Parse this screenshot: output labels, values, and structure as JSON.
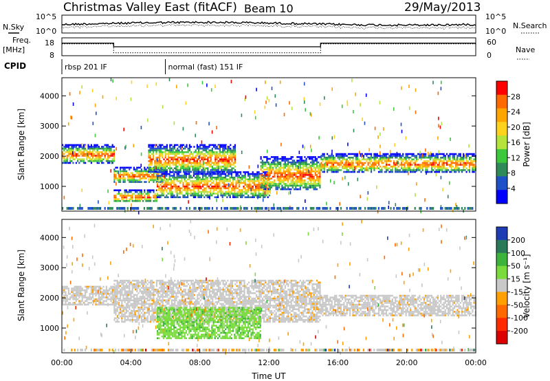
{
  "header": {
    "station": "Christmas Valley East (fitACF)",
    "beam": "Beam 10",
    "date": "29/May/2013"
  },
  "left_labels": {
    "nsky": "N.Sky",
    "freq_line1": "Freq.",
    "freq_line2": "[MHz]",
    "cpid": "CPID"
  },
  "right_labels": {
    "nsearch": "N.Search",
    "nave": "Nave"
  },
  "noise_axis": {
    "top": "10^5",
    "bottom": "10^0"
  },
  "freq_axis": {
    "top": "18",
    "bottom": "8"
  },
  "nave_axis": {
    "top": "60",
    "bottom": "0"
  },
  "cpid_segments": [
    {
      "label": "rbsp 201 IF",
      "start_hour": 0,
      "end_hour": 6
    },
    {
      "label": "normal (fast) 151 IF",
      "start_hour": 6,
      "end_hour": 24
    }
  ],
  "power_panel": {
    "ylabel": "Slant Range [km]",
    "colorbar_label": "Power [dB]",
    "colorbar_ticks": [
      "28",
      "24",
      "20",
      "16",
      "12",
      "8",
      "4"
    ],
    "colors": [
      "#ff0000",
      "#ff6a00",
      "#ffa500",
      "#ffd21e",
      "#b4e33c",
      "#3cc83c",
      "#2e8b57",
      "#1e50c8",
      "#0000ff"
    ]
  },
  "velocity_panel": {
    "ylabel": "Slant Range [km]",
    "colorbar_label": "Velocity [m s⁻¹]",
    "colorbar_ticks": [
      "200",
      "100",
      "50",
      "15",
      "-15",
      "-50",
      "-100",
      "-200"
    ],
    "colors": [
      "#1e3cb4",
      "#2a7a5a",
      "#3cb43c",
      "#7adc3c",
      "#c8c8c8",
      "#ffa000",
      "#ff6a00",
      "#ff2a00",
      "#dd0000"
    ]
  },
  "range_ticks": [
    "4000",
    "3000",
    "2000",
    "1000"
  ],
  "time_ticks": [
    "00:00",
    "04:00",
    "08:00",
    "12:00",
    "16:00",
    "20:00",
    "00:00"
  ],
  "xlabel": "Time UT",
  "chart_data": {
    "type": "heatmap",
    "x_unit": "hours UT",
    "xlim": [
      0,
      24
    ],
    "ylim_range_km": [
      180,
      4600
    ],
    "frequency_mhz": [
      {
        "start_hour": 0,
        "end_hour": 3,
        "value": 15
      },
      {
        "start_hour": 3,
        "end_hour": 15,
        "value": 13
      },
      {
        "start_hour": 15,
        "end_hour": 24,
        "value": 15
      }
    ],
    "nave": [
      {
        "start_hour": 0,
        "end_hour": 3,
        "value": 40
      },
      {
        "start_hour": 3,
        "end_hour": 15,
        "value": 10
      },
      {
        "start_hour": 15,
        "end_hour": 24,
        "value": 40
      }
    ],
    "power_bands": [
      {
        "start_hour": 0,
        "end_hour": 3,
        "range_low": 1800,
        "range_high": 2400
      },
      {
        "start_hour": 3,
        "end_hour": 6,
        "range_low": 1150,
        "range_high": 1650
      },
      {
        "start_hour": 3,
        "end_hour": 5.5,
        "range_low": 500,
        "range_high": 900
      },
      {
        "start_hour": 5.5,
        "end_hour": 12,
        "range_low": 650,
        "range_high": 1500
      },
      {
        "start_hour": 5,
        "end_hour": 10,
        "range_low": 1500,
        "range_high": 2400
      },
      {
        "start_hour": 11.5,
        "end_hour": 15,
        "range_low": 900,
        "range_high": 2000
      },
      {
        "start_hour": 15,
        "end_hour": 24,
        "range_low": 1500,
        "range_high": 2100
      }
    ],
    "velocity_bands": [
      {
        "start_hour": 0,
        "end_hour": 3,
        "range_low": 1800,
        "range_high": 2400,
        "velocity": 0
      },
      {
        "start_hour": 3,
        "end_hour": 15,
        "range_low": 1200,
        "range_high": 2600,
        "velocity": 0
      },
      {
        "start_hour": 5.5,
        "end_hour": 11.5,
        "range_low": 650,
        "range_high": 1700,
        "velocity": 30
      },
      {
        "start_hour": 15,
        "end_hour": 24,
        "range_low": 1400,
        "range_high": 2100,
        "velocity": 0
      }
    ]
  }
}
